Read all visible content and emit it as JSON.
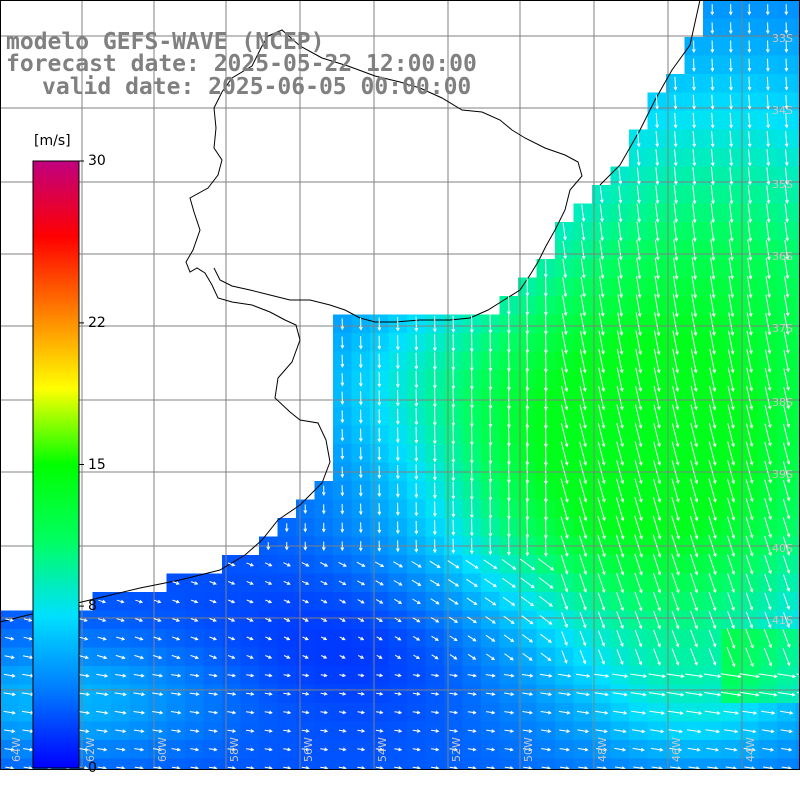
{
  "title": {
    "line1": "modelo GEFS-WAVE (NCEP)",
    "line2": "forecast date: 2025-05-22 12:00:00",
    "line3": "valid date: 2025-06-05 00:00:00"
  },
  "colorbar": {
    "unit": "[m/s]",
    "min": 0,
    "max": 30,
    "ticks": [
      "30",
      "22",
      "15",
      "8",
      "0"
    ],
    "gradient": [
      "#0000ff",
      "#0078ff",
      "#00e0ff",
      "#00ff60",
      "#00ff00",
      "#ffff00",
      "#ff8000",
      "#ff0000",
      "#c00080"
    ]
  },
  "map": {
    "title": "modelo GEFS-WAVE (NCEP)",
    "field": "wind speed",
    "unit": "m/s",
    "lat_labels": [
      "33S",
      "34S",
      "35S",
      "36S",
      "37S",
      "38S",
      "39S",
      "40S",
      "41S"
    ],
    "lon_labels": [
      "64W",
      "62W",
      "60W",
      "58W",
      "56W",
      "54W",
      "52W",
      "50W",
      "48W",
      "46W",
      "44W"
    ],
    "land_color": "#ffffff",
    "grid_color": "#808080"
  }
}
